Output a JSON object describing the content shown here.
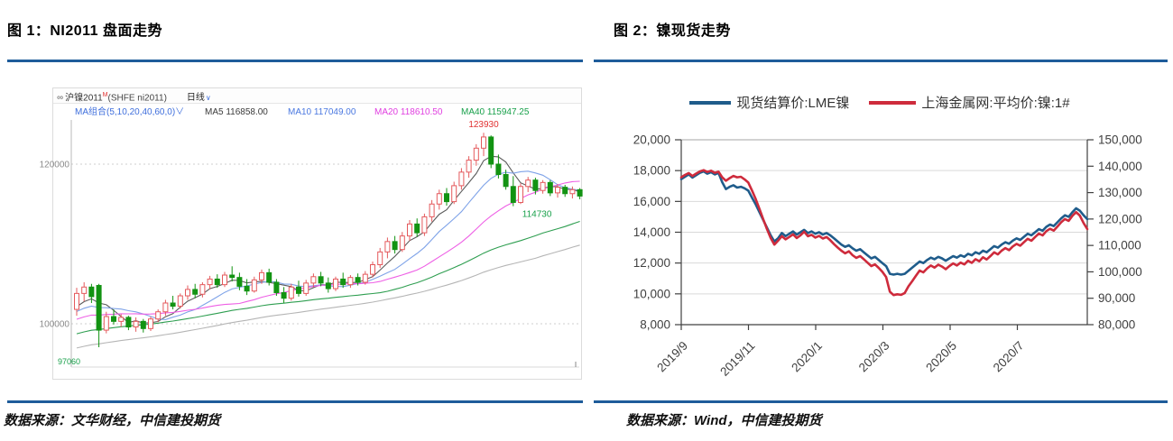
{
  "rule_color": "#1E5C9A",
  "figure1": {
    "title": "图 1：NI2011 盘面走势",
    "source": "数据来源：文华财经，中信建投期货",
    "terminal": {
      "logo": "∞",
      "symbol": "沪镍2011",
      "symbol_sup": "M",
      "symbol_suffix": "(SHFE ni2011)",
      "period": "日线",
      "caret": "∨",
      "ma_group_label": "MA组合(5,10,20,40,60,0)∨",
      "ma_items": [
        {
          "label": "MA5",
          "value": "116858.00",
          "color": "#3a3a3a"
        },
        {
          "label": "MA10",
          "value": "117049.00",
          "color": "#4A78E0"
        },
        {
          "label": "MA20",
          "value": "118610.50",
          "color": "#E03EE0"
        },
        {
          "label": "MA40",
          "value": "115947.25",
          "color": "#18A04A"
        }
      ]
    },
    "chart_data": {
      "type": "candlestick",
      "title": "NI2011 盘面走势",
      "y_ticks": [
        120000,
        100000
      ],
      "annotations": {
        "high": "123930",
        "swing_low": "114730",
        "low": "97060",
        "high_index": 55,
        "swing_low_index": 59
      },
      "up_color": "#E4595C",
      "down_color": "#129312",
      "ma_windows": [
        5,
        10,
        20,
        40,
        60
      ],
      "ma_colors": [
        "#5C5C5C",
        "#7FA3E8",
        "#EE5FE5",
        "#2E9E50",
        "#B5B5B5"
      ],
      "ma_seed": {
        "from": 91500,
        "to": 102000,
        "count": 60
      },
      "candles": [
        [
          101800,
          104500,
          101000,
          103800
        ],
        [
          103800,
          105200,
          102800,
          104600
        ],
        [
          104600,
          105000,
          102600,
          103400
        ],
        [
          104800,
          105000,
          97060,
          99200
        ],
        [
          99200,
          101500,
          98800,
          100900
        ],
        [
          100900,
          101800,
          99900,
          100300
        ],
        [
          100300,
          101200,
          99600,
          100800
        ],
        [
          100800,
          101000,
          99200,
          99600
        ],
        [
          99600,
          100800,
          99000,
          100300
        ],
        [
          100300,
          100600,
          98900,
          99400
        ],
        [
          99400,
          100900,
          99100,
          100600
        ],
        [
          100600,
          101800,
          100200,
          101500
        ],
        [
          101500,
          103000,
          101000,
          102600
        ],
        [
          102600,
          103500,
          101800,
          102200
        ],
        [
          102200,
          103800,
          101900,
          103500
        ],
        [
          103500,
          104800,
          103000,
          104300
        ],
        [
          104300,
          105000,
          103200,
          103700
        ],
        [
          103700,
          105200,
          103300,
          104900
        ],
        [
          104900,
          106000,
          104300,
          105600
        ],
        [
          105600,
          106200,
          104500,
          104900
        ],
        [
          104900,
          106500,
          104600,
          106100
        ],
        [
          106100,
          107200,
          105300,
          105800
        ],
        [
          105800,
          106400,
          104200,
          104700
        ],
        [
          104700,
          105600,
          103600,
          104100
        ],
        [
          104100,
          105900,
          103900,
          105500
        ],
        [
          105500,
          106800,
          105000,
          106400
        ],
        [
          106400,
          106900,
          104800,
          105200
        ],
        [
          105200,
          105600,
          103500,
          103900
        ],
        [
          103900,
          104600,
          102600,
          103200
        ],
        [
          103200,
          105000,
          102900,
          104600
        ],
        [
          104600,
          105400,
          103400,
          103800
        ],
        [
          103800,
          105500,
          103500,
          105100
        ],
        [
          105100,
          106300,
          104600,
          105900
        ],
        [
          105900,
          106500,
          104700,
          105100
        ],
        [
          105100,
          105800,
          103900,
          104400
        ],
        [
          104400,
          105900,
          104100,
          105600
        ],
        [
          105600,
          106400,
          104500,
          104900
        ],
        [
          104900,
          106100,
          104500,
          105800
        ],
        [
          105800,
          106300,
          104800,
          105200
        ],
        [
          105200,
          106600,
          104900,
          106200
        ],
        [
          106200,
          107800,
          105800,
          107400
        ],
        [
          107400,
          109500,
          107000,
          109000
        ],
        [
          109000,
          110800,
          108200,
          110300
        ],
        [
          110300,
          111000,
          108800,
          109300
        ],
        [
          109300,
          111500,
          109000,
          111000
        ],
        [
          111000,
          113000,
          110400,
          112500
        ],
        [
          112500,
          113200,
          110900,
          111400
        ],
        [
          111400,
          113800,
          111000,
          113400
        ],
        [
          113400,
          115500,
          112800,
          115000
        ],
        [
          115000,
          116800,
          114300,
          116300
        ],
        [
          116300,
          117000,
          114800,
          115300
        ],
        [
          115300,
          117800,
          115000,
          117300
        ],
        [
          117300,
          119500,
          116800,
          119000
        ],
        [
          119000,
          121000,
          118300,
          120500
        ],
        [
          120500,
          122500,
          119800,
          122000
        ],
        [
          122000,
          123930,
          121000,
          123400
        ],
        [
          123400,
          123600,
          119500,
          120000
        ],
        [
          120000,
          121200,
          118200,
          118700
        ],
        [
          118700,
          119300,
          116800,
          117200
        ],
        [
          117200,
          118500,
          114730,
          115200
        ],
        [
          115200,
          117600,
          115000,
          117200
        ],
        [
          117200,
          118400,
          116500,
          118000
        ],
        [
          118000,
          118300,
          116200,
          116700
        ],
        [
          116700,
          118000,
          116300,
          117700
        ],
        [
          117700,
          118000,
          116000,
          116400
        ],
        [
          116400,
          117500,
          115800,
          117100
        ],
        [
          117100,
          117400,
          115900,
          116300
        ],
        [
          116300,
          117200,
          115700,
          116800
        ],
        [
          116800,
          117000,
          115600,
          116000
        ]
      ]
    }
  },
  "figure2": {
    "title": "图 2：镍现货走势",
    "source": "数据来源：Wind，中信建投期货",
    "legend": [
      {
        "label": "现货结算价:LME镍",
        "color": "#1F5C8B"
      },
      {
        "label": "上海金属网:平均价:镍:1#",
        "color": "#CE2B3C"
      }
    ],
    "chart_data": {
      "type": "line",
      "title": "镍现货走势",
      "x_ticks": [
        "2019/9",
        "2019/11",
        "2020/1",
        "2020/3",
        "2020/5",
        "2020/7"
      ],
      "left_axis": {
        "min": 8000,
        "max": 20000,
        "step": 2000,
        "ticks": [
          "20,000",
          "18,000",
          "16,000",
          "14,000",
          "12,000",
          "10,000",
          "8,000"
        ]
      },
      "right_axis": {
        "min": 80000,
        "max": 150000,
        "step": 10000,
        "ticks": [
          "150,000",
          "140,000",
          "130,000",
          "120,000",
          "110,000",
          "100,000",
          "90,000",
          "80,000"
        ]
      },
      "series": [
        {
          "name": "现货结算价:LME镍",
          "axis": "left",
          "color": "#1F5C8B",
          "values": [
            17450,
            17600,
            17750,
            17550,
            17700,
            17850,
            17950,
            17800,
            17900,
            17750,
            17850,
            17250,
            16800,
            16950,
            17050,
            16900,
            16950,
            16850,
            16700,
            16250,
            15800,
            15300,
            14800,
            14300,
            13800,
            13400,
            13600,
            13950,
            13750,
            13900,
            14050,
            13850,
            14000,
            14150,
            13950,
            14050,
            13900,
            14000,
            13850,
            13950,
            13800,
            13600,
            13400,
            13200,
            13050,
            13150,
            12950,
            12800,
            12900,
            12700,
            12500,
            12300,
            12400,
            12200,
            12000,
            11800,
            11300,
            11250,
            11300,
            11250,
            11300,
            11500,
            11700,
            11900,
            12100,
            12000,
            12200,
            12350,
            12250,
            12400,
            12300,
            12150,
            12300,
            12450,
            12350,
            12500,
            12400,
            12600,
            12500,
            12700,
            12600,
            12800,
            12700,
            12900,
            13100,
            13000,
            13200,
            13350,
            13250,
            13450,
            13600,
            13500,
            13700,
            13900,
            13800,
            14000,
            14200,
            14100,
            14350,
            14500,
            14400,
            14650,
            14900,
            15100,
            15000,
            15300,
            15550,
            15400,
            15100,
            14850
          ]
        },
        {
          "name": "上海金属网:平均价:镍:1#",
          "axis": "right",
          "color": "#CE2B3C",
          "values": [
            135800,
            136700,
            137400,
            136300,
            137200,
            138000,
            138500,
            137800,
            138300,
            137500,
            137900,
            135800,
            134500,
            135500,
            136300,
            135800,
            136000,
            135000,
            133800,
            130800,
            127500,
            123800,
            120000,
            116200,
            112800,
            110300,
            111800,
            113500,
            112300,
            113200,
            114200,
            112800,
            113800,
            115200,
            113500,
            114000,
            113000,
            113600,
            112600,
            113200,
            112000,
            110500,
            109200,
            108000,
            107000,
            107800,
            106300,
            105300,
            106000,
            104800,
            103500,
            102200,
            102800,
            101500,
            100000,
            98000,
            92500,
            91200,
            91500,
            91300,
            92000,
            94500,
            96500,
            98500,
            100500,
            99800,
            101300,
            102400,
            101600,
            102700,
            102000,
            101000,
            102200,
            103200,
            102400,
            103500,
            102800,
            104200,
            103400,
            104800,
            104000,
            105500,
            104700,
            106000,
            107400,
            106600,
            108000,
            109000,
            108200,
            109600,
            110600,
            109900,
            111200,
            112500,
            111800,
            113200,
            114500,
            113800,
            115400,
            116300,
            115600,
            117200,
            118800,
            120000,
            119300,
            121200,
            122600,
            121300,
            118500,
            116200
          ]
        }
      ]
    }
  }
}
